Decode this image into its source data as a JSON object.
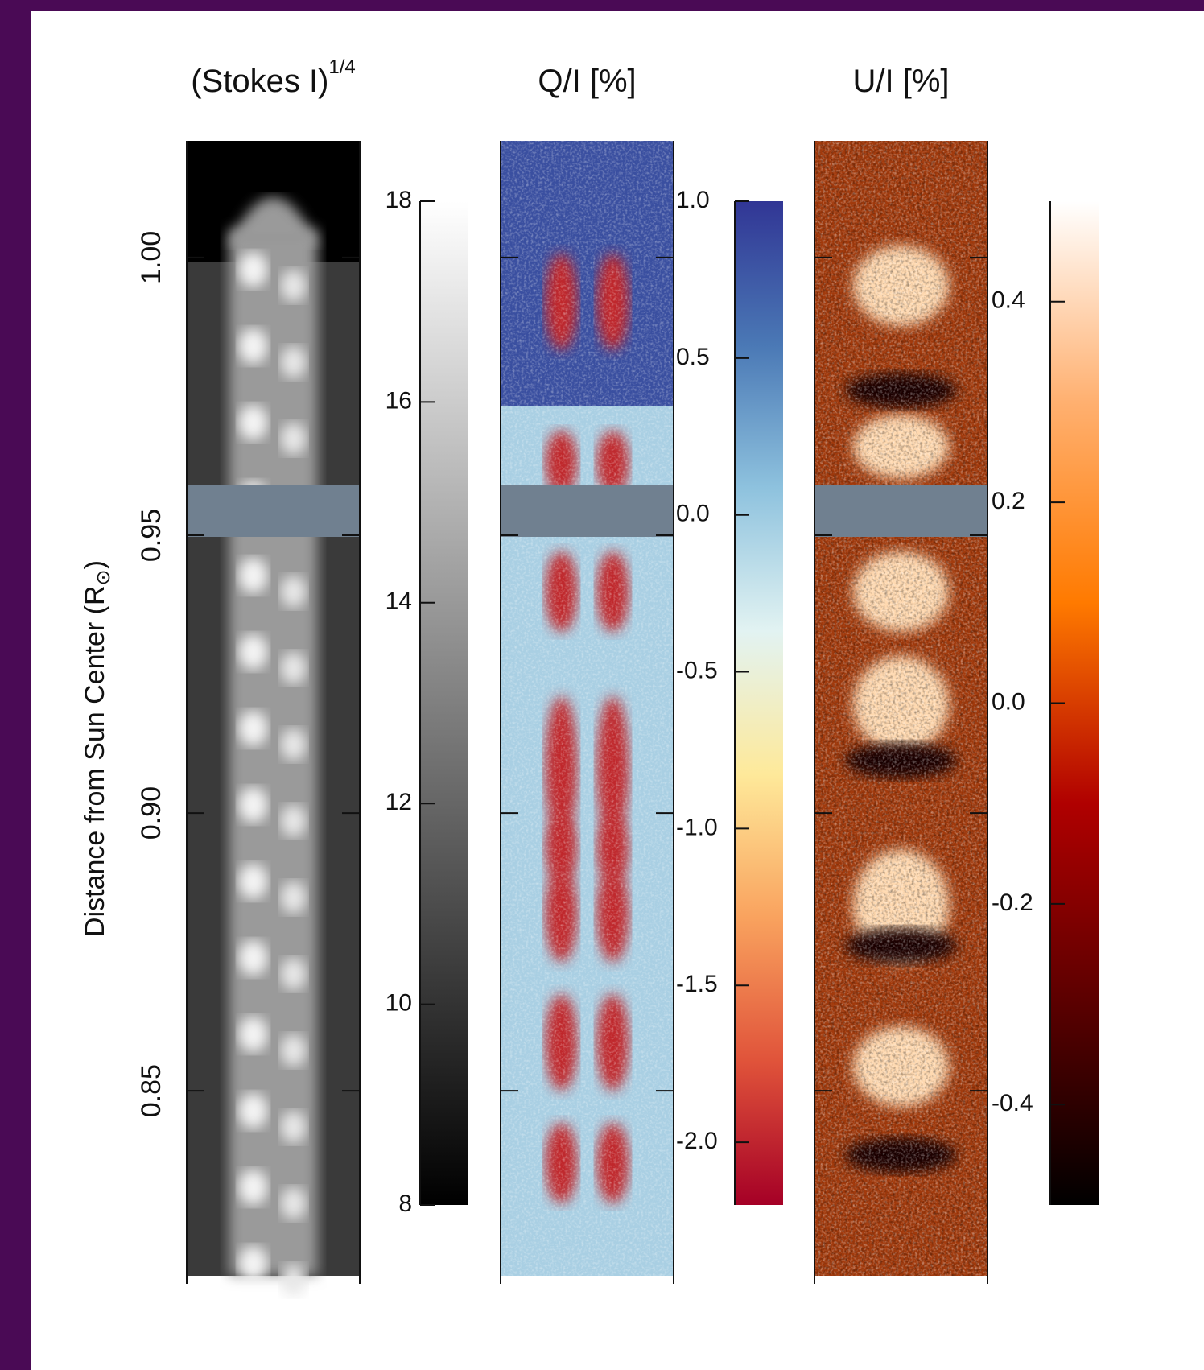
{
  "chart_data": [
    {
      "type": "image",
      "title": "(Stokes I)",
      "title_superscript": "1/4",
      "ylabel": "Distance from Sun Center (R",
      "ylabel_subscript": "⊙",
      "ylabel_suffix": ")",
      "ylim": [
        0.8167,
        1.021
      ],
      "yticks": [
        {
          "value": 1.0,
          "label": "1.00"
        },
        {
          "value": 0.95,
          "label": "0.95"
        },
        {
          "value": 0.9,
          "label": "0.90"
        },
        {
          "value": 0.85,
          "label": "0.85"
        }
      ],
      "colormap": "gray",
      "colorbar": {
        "lim": [
          8,
          18
        ],
        "ticks": [
          8,
          10,
          12,
          14,
          16,
          18
        ]
      }
    },
    {
      "type": "image",
      "title": "Q/I [%]",
      "colormap": "RdYlBu",
      "colorbar": {
        "lim": [
          -2.2,
          1.0
        ],
        "ticks": [
          {
            "value": 1.0,
            "label": "1.0"
          },
          {
            "value": 0.5,
            "label": "0.5"
          },
          {
            "value": 0.0,
            "label": "0.0"
          },
          {
            "value": -0.5,
            "label": "-0.5"
          },
          {
            "value": -1.0,
            "label": "-1.0"
          },
          {
            "value": -1.5,
            "label": "-1.5"
          },
          {
            "value": -2.0,
            "label": "-2.0"
          }
        ]
      }
    },
    {
      "type": "image",
      "title": "U/I [%]",
      "colormap": "hot",
      "colorbar": {
        "lim": [
          -0.5,
          0.5
        ],
        "ticks": [
          {
            "value": 0.4,
            "label": "0.4"
          },
          {
            "value": 0.2,
            "label": "0.2"
          },
          {
            "value": 0.0,
            "label": "0.0"
          },
          {
            "value": -0.2,
            "label": "-0.2"
          },
          {
            "value": -0.4,
            "label": "-0.4"
          }
        ]
      }
    }
  ]
}
